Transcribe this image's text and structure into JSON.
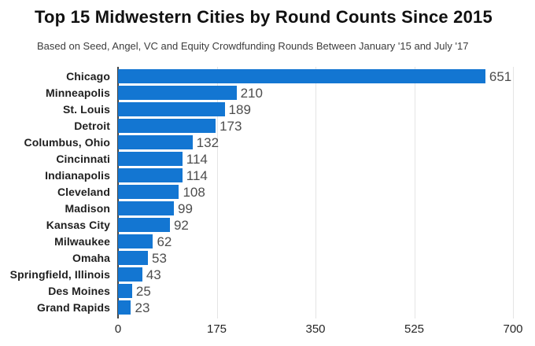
{
  "title": "Top 15 Midwestern Cities by Round Counts Since 2015",
  "subtitle": "Based on Seed, Angel, VC and Equity Crowdfunding Rounds Between January '15 and July '17",
  "chart_data": {
    "type": "bar",
    "orientation": "horizontal",
    "title": "Top 15 Midwestern Cities by Round Counts Since 2015",
    "subtitle": "Based on Seed, Angel, VC and Equity Crowdfunding Rounds Between January '15 and July '17",
    "categories": [
      "Chicago",
      "Minneapolis",
      "St. Louis",
      "Detroit",
      "Columbus, Ohio",
      "Cincinnati",
      "Indianapolis",
      "Cleveland",
      "Madison",
      "Kansas City",
      "Milwaukee",
      "Omaha",
      "Springfield, Illinois",
      "Des Moines",
      "Grand Rapids"
    ],
    "values": [
      651,
      210,
      189,
      173,
      132,
      114,
      114,
      108,
      99,
      92,
      62,
      53,
      43,
      25,
      23
    ],
    "value_labels_shown": true,
    "xlabel": "",
    "ylabel": "",
    "xlim": [
      0,
      700
    ],
    "xticks": [
      0,
      175,
      350,
      525,
      700
    ],
    "grid": "vertical-gridlines-on",
    "legend": "none"
  },
  "colors": {
    "background": "#ffffff",
    "bar": "#1376d2",
    "title": "#111111",
    "subtitle": "#3d3d3d",
    "category_label": "#1f1f1f",
    "value_label": "#4d4d4d",
    "tick_label": "#262626",
    "gridline": "#e4e4e4",
    "axis_line": "#444444"
  }
}
